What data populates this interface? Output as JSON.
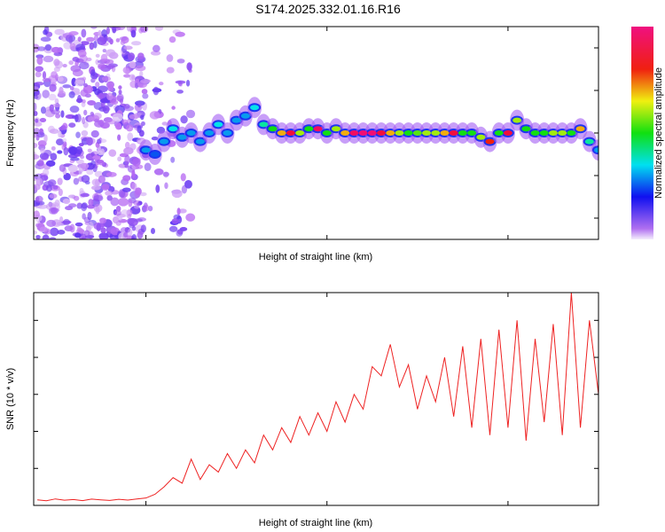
{
  "title": "S174.2025.332.01.16.R16",
  "chart_data": [
    {
      "type": "heatmap",
      "xlabel": "Height of straight line (km)",
      "ylabel": "Frequency (Hz)",
      "xlim": [
        -162,
        150
      ],
      "ylim": [
        -25,
        25
      ],
      "xticks": [
        -100,
        0,
        100
      ],
      "yticks": [
        -20,
        -10,
        0,
        10,
        20
      ],
      "colorbar": {
        "label": "Normalized spectral amplitude",
        "range": [
          0,
          1
        ],
        "ticks": [
          "0.0",
          "0.2",
          "0.4",
          "0.6",
          "0.8"
        ]
      },
      "ridge": {
        "x": [
          -100,
          -95,
          -90,
          -85,
          -80,
          -75,
          -70,
          -65,
          -60,
          -55,
          -50,
          -45,
          -40,
          -35,
          -30,
          -25,
          -20,
          -15,
          -10,
          -5,
          0,
          5,
          10,
          15,
          20,
          25,
          30,
          35,
          40,
          45,
          50,
          55,
          60,
          65,
          70,
          75,
          80,
          85,
          90,
          95,
          100,
          105,
          110,
          115,
          120,
          125,
          130,
          135,
          140,
          145,
          150
        ],
        "freq": [
          -4,
          -5,
          -2,
          1,
          -1,
          0,
          -2,
          0,
          2,
          0,
          3,
          4,
          6,
          2,
          1,
          0,
          0,
          0,
          1,
          1,
          0,
          1,
          0,
          0,
          0,
          0,
          0,
          0,
          0,
          0,
          0,
          0,
          0,
          0,
          0,
          0,
          0,
          -1,
          -2,
          0,
          0,
          3,
          1,
          0,
          0,
          0,
          0,
          0,
          1,
          -2,
          -4
        ],
        "amplitude": [
          0.3,
          0.25,
          0.3,
          0.35,
          0.3,
          0.3,
          0.3,
          0.3,
          0.35,
          0.3,
          0.3,
          0.3,
          0.35,
          0.4,
          0.5,
          0.7,
          0.9,
          0.6,
          0.5,
          0.95,
          0.5,
          0.6,
          0.7,
          0.95,
          0.98,
          0.98,
          0.9,
          0.7,
          0.6,
          0.5,
          0.55,
          0.6,
          0.6,
          0.7,
          0.9,
          0.5,
          0.5,
          0.6,
          0.8,
          0.5,
          0.9,
          0.6,
          0.5,
          0.5,
          0.5,
          0.6,
          0.6,
          0.5,
          0.7,
          0.4,
          0.3
        ]
      },
      "noise_region": {
        "x_range": [
          -162,
          -100
        ],
        "amplitude_range": [
          0.0,
          0.15
        ]
      }
    },
    {
      "type": "line",
      "xlabel": "Height of straight line (km)",
      "ylabel": "SNR (10 * v/v)",
      "xlim": [
        -162,
        150
      ],
      "ylim": [
        0,
        1150
      ],
      "xticks": [
        -100,
        0,
        100
      ],
      "yticks": [
        0,
        200,
        400,
        600,
        800,
        1000
      ],
      "color": "#ee2222",
      "x": [
        -160,
        -155,
        -150,
        -145,
        -140,
        -135,
        -130,
        -125,
        -120,
        -115,
        -110,
        -105,
        -100,
        -95,
        -90,
        -85,
        -80,
        -75,
        -70,
        -65,
        -60,
        -55,
        -50,
        -45,
        -40,
        -35,
        -30,
        -25,
        -20,
        -15,
        -10,
        -5,
        0,
        5,
        10,
        15,
        20,
        25,
        30,
        35,
        40,
        45,
        50,
        55,
        60,
        65,
        70,
        75,
        80,
        85,
        90,
        95,
        100,
        105,
        110,
        115,
        120,
        125,
        130,
        135,
        140,
        145,
        150
      ],
      "y": [
        30,
        25,
        35,
        28,
        32,
        26,
        34,
        30,
        27,
        33,
        29,
        35,
        40,
        60,
        100,
        150,
        120,
        250,
        140,
        220,
        180,
        280,
        200,
        300,
        230,
        380,
        300,
        420,
        340,
        480,
        380,
        500,
        400,
        560,
        450,
        600,
        520,
        750,
        700,
        870,
        640,
        760,
        520,
        700,
        560,
        800,
        480,
        860,
        420,
        900,
        380,
        950,
        420,
        1000,
        350,
        900,
        450,
        980,
        380,
        1150,
        420,
        1000,
        600
      ]
    }
  ]
}
